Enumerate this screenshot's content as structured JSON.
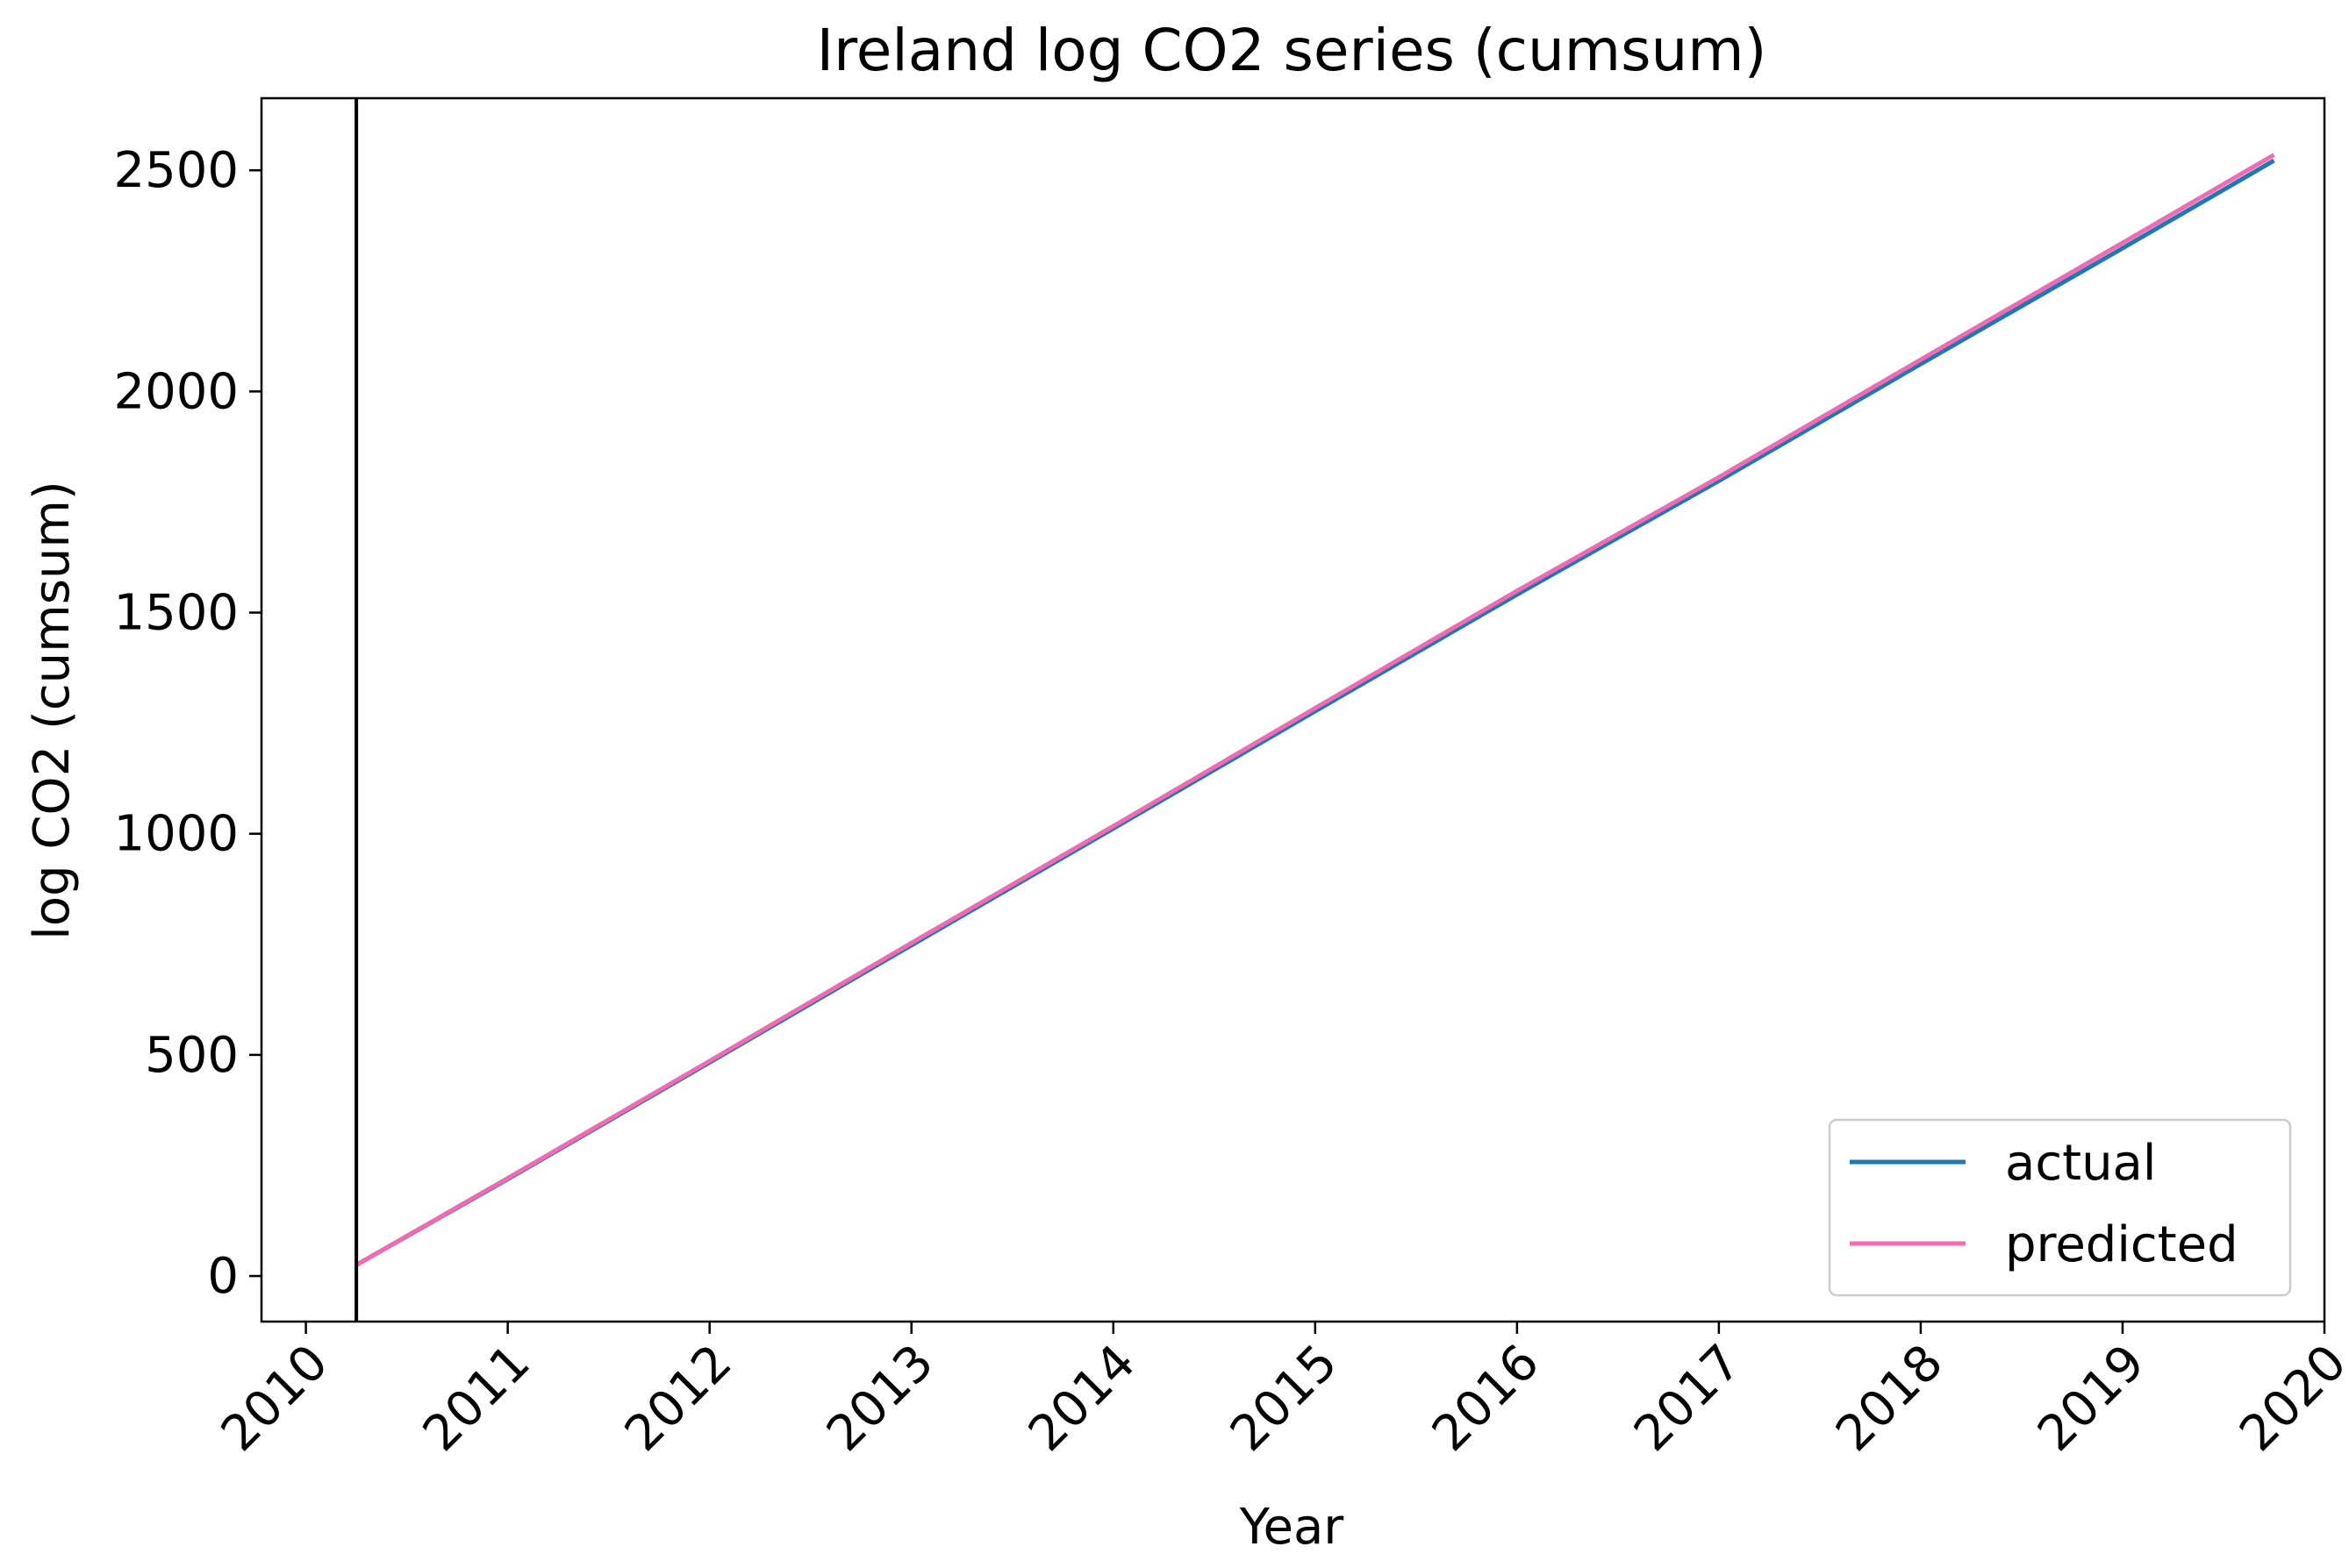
{
  "chart_data": {
    "type": "line",
    "title": "Ireland log CO2 series (cumsum)",
    "xlabel": "Year",
    "ylabel": "log CO2 (cumsum)",
    "xlim": [
      2009.78,
      2020.0
    ],
    "ylim": [
      -103,
      2663
    ],
    "xticks": [
      2010,
      2011,
      2012,
      2013,
      2014,
      2015,
      2016,
      2017,
      2018,
      2019,
      2020
    ],
    "yticks": [
      0,
      500,
      1000,
      1500,
      2000,
      2500
    ],
    "grid": false,
    "legend_position": "lower right",
    "vertical_line_x": 2010.25,
    "series": [
      {
        "name": "actual",
        "color": "#1f77b4",
        "x": [
          2010.25,
          2011.0,
          2012.0,
          2013.0,
          2014.0,
          2015.0,
          2016.0,
          2017.0,
          2018.0,
          2019.0,
          2019.75
        ],
        "y": [
          25,
          219,
          483,
          748,
          1012,
          1277,
          1541,
          1798,
          2062,
          2324,
          2522
        ]
      },
      {
        "name": "predicted",
        "color": "#f06bb3",
        "x": [
          2010.25,
          2011.0,
          2012.0,
          2013.0,
          2014.0,
          2015.0,
          2016.0,
          2017.0,
          2018.0,
          2019.0,
          2019.75
        ],
        "y": [
          25,
          221,
          486,
          753,
          1017,
          1284,
          1549,
          1806,
          2072,
          2336,
          2535
        ]
      }
    ]
  }
}
